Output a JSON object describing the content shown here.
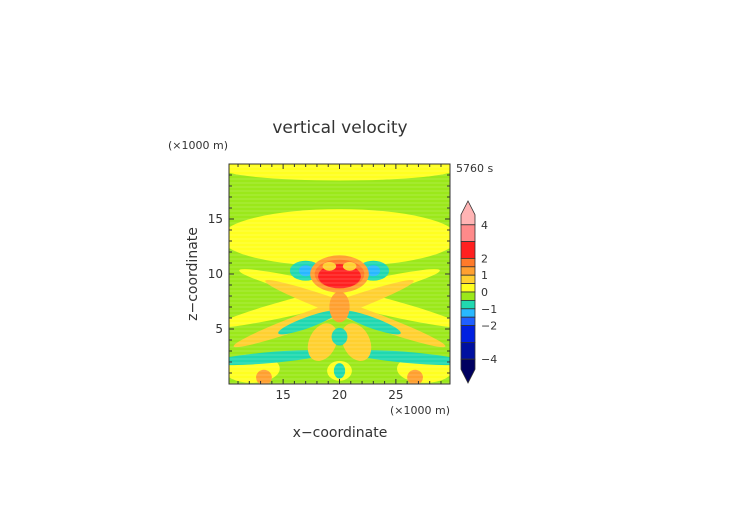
{
  "chart_data": {
    "type": "heatmap",
    "title": "vertical velocity",
    "time_label": "5760 s",
    "xlabel": "x−coordinate",
    "ylabel": "z−coordinate",
    "x_unit": "(×1000 m)",
    "y_unit": "(×1000 m)",
    "xlim": [
      10.2,
      29.8
    ],
    "ylim": [
      0,
      20
    ],
    "x_ticks": [
      15,
      20,
      25
    ],
    "y_ticks": [
      5,
      10,
      15
    ],
    "colorbar": {
      "tick_values": [
        4,
        2,
        1,
        0,
        -1,
        -2,
        -4
      ],
      "tick_labels": [
        "4",
        "2",
        "1",
        "0",
        "−1",
        "−2",
        "−4"
      ],
      "levels": [
        {
          "from": 4.0,
          "to": 5.0,
          "color": "#ffb4b4"
        },
        {
          "from": 3.0,
          "to": 4.0,
          "color": "#ff8a8a"
        },
        {
          "from": 2.0,
          "to": 3.0,
          "color": "#ff2020"
        },
        {
          "from": 1.5,
          "to": 2.0,
          "color": "#ff7a2a"
        },
        {
          "from": 1.0,
          "to": 1.5,
          "color": "#ffa030"
        },
        {
          "from": 0.5,
          "to": 1.0,
          "color": "#ffd030"
        },
        {
          "from": 0.0,
          "to": 0.5,
          "color": "#ffff20"
        },
        {
          "from": -0.5,
          "to": 0.0,
          "color": "#9be81a"
        },
        {
          "from": -1.0,
          "to": -0.5,
          "color": "#20d8b0"
        },
        {
          "from": -1.5,
          "to": -1.0,
          "color": "#28b8ff"
        },
        {
          "from": -2.0,
          "to": -1.5,
          "color": "#2060ff"
        },
        {
          "from": -3.0,
          "to": -2.0,
          "color": "#0020e0"
        },
        {
          "from": -4.0,
          "to": -3.0,
          "color": "#0010a0"
        },
        {
          "from": -5.0,
          "to": -4.0,
          "color": "#000060"
        }
      ]
    },
    "regions": [
      {
        "shape": "rect",
        "x0": 10.2,
        "x1": 29.8,
        "y0": 0,
        "y1": 20,
        "value": -0.2
      },
      {
        "shape": "ellipse",
        "cx": 20,
        "cy": 19.6,
        "rx": 10.5,
        "ry": 1.1,
        "value": 0.3
      },
      {
        "shape": "ellipse",
        "cx": 20,
        "cy": 13.3,
        "rx": 10.5,
        "ry": 2.6,
        "value": 0.3
      },
      {
        "shape": "ellipse",
        "cx": 19,
        "cy": 7.8,
        "rx": 10.2,
        "ry": 0.8,
        "rot": -14,
        "value": 0.3
      },
      {
        "shape": "ellipse",
        "cx": 21,
        "cy": 7.8,
        "rx": 10.2,
        "ry": 0.8,
        "rot": 14,
        "value": 0.3
      },
      {
        "shape": "ellipse",
        "cx": 18.6,
        "cy": 6.4,
        "rx": 8.5,
        "ry": 0.7,
        "rot": -20,
        "value": 0.7
      },
      {
        "shape": "ellipse",
        "cx": 21.4,
        "cy": 6.4,
        "rx": 8.5,
        "ry": 0.7,
        "rot": 20,
        "value": 0.7
      },
      {
        "shape": "ellipse",
        "cx": 12.2,
        "cy": 1.4,
        "rx": 2.5,
        "ry": 1.3,
        "value": 0.3
      },
      {
        "shape": "ellipse",
        "cx": 27.6,
        "cy": 1.4,
        "rx": 2.5,
        "ry": 1.3,
        "value": 0.3
      },
      {
        "shape": "ellipse",
        "cx": 13.8,
        "cy": 2.4,
        "rx": 5.2,
        "ry": 0.5,
        "rot": -5,
        "value": -0.7
      },
      {
        "shape": "ellipse",
        "cx": 26.2,
        "cy": 2.4,
        "rx": 5.2,
        "ry": 0.5,
        "rot": 5,
        "value": -0.7
      },
      {
        "shape": "ellipse",
        "cx": 17.2,
        "cy": 5.6,
        "rx": 2.8,
        "ry": 0.5,
        "rot": -20,
        "value": -0.7
      },
      {
        "shape": "ellipse",
        "cx": 22.8,
        "cy": 5.6,
        "rx": 2.8,
        "ry": 0.5,
        "rot": 20,
        "value": -0.7
      },
      {
        "shape": "ellipse",
        "cx": 18.5,
        "cy": 3.8,
        "rx": 1.2,
        "ry": 1.8,
        "rot": 25,
        "value": 0.7
      },
      {
        "shape": "ellipse",
        "cx": 21.5,
        "cy": 3.8,
        "rx": 1.2,
        "ry": 1.8,
        "rot": -25,
        "value": 0.7
      },
      {
        "shape": "ellipse",
        "cx": 20,
        "cy": 4.3,
        "rx": 0.7,
        "ry": 0.8,
        "value": -0.7
      },
      {
        "shape": "ellipse",
        "cx": 20,
        "cy": 7.0,
        "rx": 0.9,
        "ry": 1.4,
        "value": 1.2
      },
      {
        "shape": "ellipse",
        "cx": 20,
        "cy": 1.2,
        "rx": 1.1,
        "ry": 0.9,
        "value": 0.3
      },
      {
        "shape": "ellipse",
        "cx": 20,
        "cy": 1.2,
        "rx": 0.5,
        "ry": 0.7,
        "value": -0.7
      },
      {
        "shape": "ellipse",
        "cx": 13.3,
        "cy": 0.6,
        "rx": 0.7,
        "ry": 0.7,
        "value": 1.2
      },
      {
        "shape": "ellipse",
        "cx": 26.7,
        "cy": 0.6,
        "rx": 0.7,
        "ry": 0.7,
        "value": 1.2
      },
      {
        "shape": "ellipse",
        "cx": 17.0,
        "cy": 10.3,
        "rx": 1.4,
        "ry": 0.9,
        "value": -0.7
      },
      {
        "shape": "ellipse",
        "cx": 23.0,
        "cy": 10.3,
        "rx": 1.4,
        "ry": 0.9,
        "value": -0.7
      },
      {
        "shape": "ellipse",
        "cx": 17.0,
        "cy": 10.3,
        "rx": 0.6,
        "ry": 0.5,
        "value": -1.2
      },
      {
        "shape": "ellipse",
        "cx": 23.0,
        "cy": 10.3,
        "rx": 0.6,
        "ry": 0.5,
        "value": -1.2
      },
      {
        "shape": "ellipse",
        "cx": 20,
        "cy": 10.0,
        "rx": 2.6,
        "ry": 1.7,
        "value": 1.2
      },
      {
        "shape": "ellipse",
        "cx": 20,
        "cy": 10.0,
        "rx": 2.2,
        "ry": 1.3,
        "value": 1.7
      },
      {
        "shape": "ellipse",
        "cx": 20,
        "cy": 9.8,
        "rx": 1.9,
        "ry": 1.1,
        "value": 2.5
      },
      {
        "shape": "ellipse",
        "cx": 19.1,
        "cy": 10.7,
        "rx": 0.6,
        "ry": 0.4,
        "value": 0.7
      },
      {
        "shape": "ellipse",
        "cx": 20.9,
        "cy": 10.7,
        "rx": 0.6,
        "ry": 0.4,
        "value": 0.7
      }
    ]
  }
}
